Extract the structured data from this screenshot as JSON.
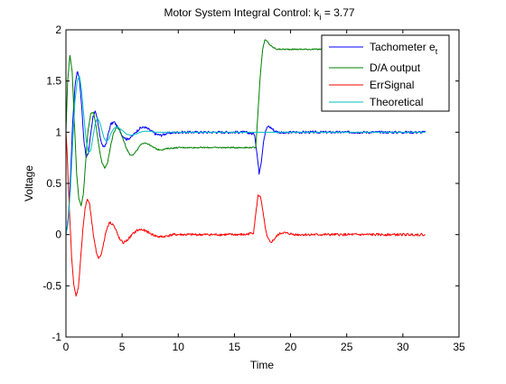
{
  "chart_data": {
    "type": "line",
    "title": {
      "prefix": "Motor System Integral Control: k",
      "subscript": "i",
      "suffix": " = 3.77"
    },
    "xlabel": "Time",
    "ylabel": "Voltage",
    "xlim": [
      0,
      35
    ],
    "ylim": [
      -1,
      2
    ],
    "xticks": [
      0,
      5,
      10,
      15,
      20,
      25,
      30,
      35
    ],
    "yticks": [
      -1,
      -0.5,
      0,
      0.5,
      1,
      1.5,
      2
    ],
    "xtick_labels": [
      "0",
      "5",
      "10",
      "15",
      "20",
      "25",
      "30",
      "35"
    ],
    "ytick_labels": [
      "-1",
      "-0.5",
      "0",
      "0.5",
      "1",
      "1.5",
      "2"
    ],
    "grid": false,
    "legend_position": "top-right",
    "series": [
      {
        "name": "Tachometer e",
        "name_subscript": "t",
        "color": "#0000ff",
        "x": [
          0,
          0.2,
          0.4,
          0.6,
          0.8,
          1.0,
          1.2,
          1.4,
          1.6,
          1.8,
          2.0,
          2.2,
          2.4,
          2.6,
          2.8,
          3.0,
          3.2,
          3.4,
          3.6,
          3.8,
          4.0,
          4.3,
          4.6,
          5.0,
          5.4,
          5.8,
          6.2,
          6.6,
          7.0,
          7.5,
          8.0,
          8.5,
          9.0,
          10,
          12,
          14,
          16,
          16.8,
          17.0,
          17.2,
          17.4,
          17.6,
          17.8,
          18.0,
          18.3,
          18.6,
          19.0,
          19.5,
          20,
          22,
          25,
          28,
          32
        ],
        "y": [
          0.0,
          0.15,
          0.55,
          1.1,
          1.45,
          1.6,
          1.52,
          1.25,
          0.92,
          0.75,
          0.8,
          0.98,
          1.15,
          1.2,
          1.12,
          0.98,
          0.88,
          0.85,
          0.9,
          1.0,
          1.08,
          1.1,
          1.05,
          0.97,
          0.93,
          0.95,
          1.0,
          1.04,
          1.05,
          1.02,
          0.98,
          0.97,
          0.99,
          1.0,
          1.0,
          1.0,
          1.0,
          0.98,
          0.8,
          0.6,
          0.72,
          0.92,
          1.02,
          1.06,
          1.04,
          1.01,
          1.0,
          0.99,
          1.0,
          1.0,
          1.0,
          1.0,
          1.0
        ],
        "noise": 0.012
      },
      {
        "name": "D/A output",
        "color": "#008000",
        "x": [
          0,
          0.15,
          0.35,
          0.55,
          0.75,
          0.95,
          1.15,
          1.35,
          1.55,
          1.75,
          1.95,
          2.2,
          2.45,
          2.7,
          2.95,
          3.2,
          3.45,
          3.7,
          3.95,
          4.2,
          4.5,
          4.8,
          5.1,
          5.4,
          5.7,
          6.0,
          6.3,
          6.6,
          7.0,
          7.4,
          7.8,
          8.2,
          8.6,
          9.0,
          10,
          12,
          14,
          16,
          16.9,
          17.1,
          17.3,
          17.5,
          17.7,
          17.9,
          18.1,
          18.4,
          18.8,
          19.3,
          20,
          22,
          25,
          28,
          32
        ],
        "y": [
          1.0,
          1.5,
          1.75,
          1.6,
          1.1,
          0.6,
          0.35,
          0.28,
          0.4,
          0.7,
          1.0,
          1.18,
          1.2,
          1.05,
          0.85,
          0.7,
          0.65,
          0.7,
          0.85,
          0.98,
          1.05,
          1.02,
          0.93,
          0.84,
          0.78,
          0.78,
          0.82,
          0.87,
          0.9,
          0.88,
          0.85,
          0.83,
          0.83,
          0.84,
          0.85,
          0.85,
          0.85,
          0.85,
          0.85,
          1.2,
          1.55,
          1.8,
          1.9,
          1.89,
          1.86,
          1.83,
          1.81,
          1.81,
          1.81,
          1.81,
          1.81,
          1.81,
          1.81
        ],
        "noise": 0.006
      },
      {
        "name": "ErrSignal",
        "color": "#ff0000",
        "x": [
          0,
          0.1,
          0.3,
          0.5,
          0.7,
          0.9,
          1.1,
          1.3,
          1.5,
          1.7,
          1.9,
          2.1,
          2.3,
          2.5,
          2.7,
          2.9,
          3.1,
          3.3,
          3.5,
          3.7,
          3.9,
          4.2,
          4.5,
          4.8,
          5.1,
          5.5,
          5.9,
          6.3,
          6.7,
          7.2,
          7.7,
          8.2,
          8.7,
          9.5,
          10,
          12,
          14,
          16,
          16.7,
          16.9,
          17.1,
          17.3,
          17.5,
          17.7,
          17.9,
          18.2,
          18.5,
          18.9,
          19.3,
          19.8,
          20.5,
          22,
          25,
          28,
          32
        ],
        "y": [
          1.0,
          0.8,
          0.25,
          -0.2,
          -0.5,
          -0.6,
          -0.52,
          -0.25,
          0.05,
          0.25,
          0.35,
          0.3,
          0.12,
          -0.05,
          -0.17,
          -0.23,
          -0.2,
          -0.12,
          0.0,
          0.08,
          0.12,
          0.1,
          0.03,
          -0.05,
          -0.08,
          -0.05,
          0.0,
          0.04,
          0.05,
          0.03,
          0.0,
          -0.02,
          -0.02,
          0.0,
          0.0,
          0.0,
          0.0,
          0.0,
          0.02,
          0.2,
          0.38,
          0.38,
          0.25,
          0.1,
          -0.02,
          -0.08,
          -0.05,
          0.0,
          0.02,
          0.01,
          0.0,
          0.0,
          0.0,
          0.0,
          0.0
        ],
        "noise": 0.012
      },
      {
        "name": "Theoretical",
        "color": "#00bfbf",
        "x": [
          0,
          0.2,
          0.4,
          0.6,
          0.8,
          1.0,
          1.2,
          1.4,
          1.6,
          1.8,
          2.0,
          2.2,
          2.4,
          2.6,
          2.8,
          3.0,
          3.2,
          3.4,
          3.6,
          3.8,
          4.0,
          4.3,
          4.6,
          5.0,
          5.4,
          5.8,
          6.2,
          6.6,
          7.0,
          7.5,
          8.0,
          8.5,
          9.0,
          10,
          12,
          14,
          16,
          17,
          18,
          20,
          22,
          25,
          28,
          32
        ],
        "y": [
          0.0,
          0.12,
          0.45,
          0.9,
          1.3,
          1.5,
          1.55,
          1.4,
          1.15,
          0.92,
          0.8,
          0.82,
          0.95,
          1.08,
          1.14,
          1.1,
          1.02,
          0.94,
          0.91,
          0.93,
          0.99,
          1.04,
          1.05,
          1.02,
          0.98,
          0.97,
          0.98,
          1.0,
          1.01,
          1.01,
          1.0,
          1.0,
          1.0,
          1.0,
          1.0,
          1.0,
          1.0,
          1.0,
          1.0,
          1.0,
          1.0,
          1.0,
          1.0,
          1.0
        ],
        "noise": 0
      }
    ]
  }
}
